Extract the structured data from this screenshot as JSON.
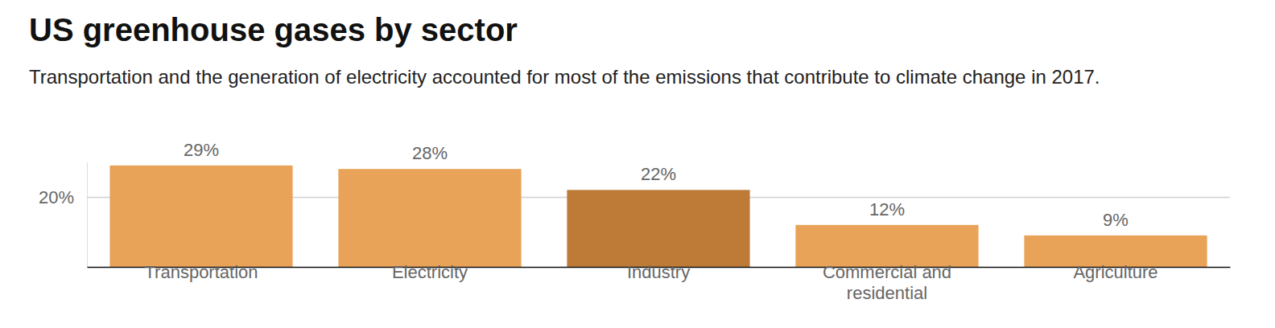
{
  "chart_data": {
    "type": "bar",
    "title": "US greenhouse gases by sector",
    "subtitle": "Transportation and the generation of electricity accounted for most of the emissions that contribute to climate change in 2017.",
    "categories": [
      "Transportation",
      "Electricity",
      "Industry",
      "Commercial and residential",
      "Agriculture"
    ],
    "values": [
      29,
      28,
      22,
      12,
      9
    ],
    "value_labels": [
      "29%",
      "28%",
      "22%",
      "12%",
      "9%"
    ],
    "colors": [
      "#e8a358",
      "#e8a358",
      "#be7b37",
      "#e8a358",
      "#e8a358"
    ],
    "ylim": [
      0,
      30
    ],
    "yticks": [
      {
        "value": 20,
        "label": "20%"
      }
    ],
    "grid": true,
    "data_labels": true
  }
}
